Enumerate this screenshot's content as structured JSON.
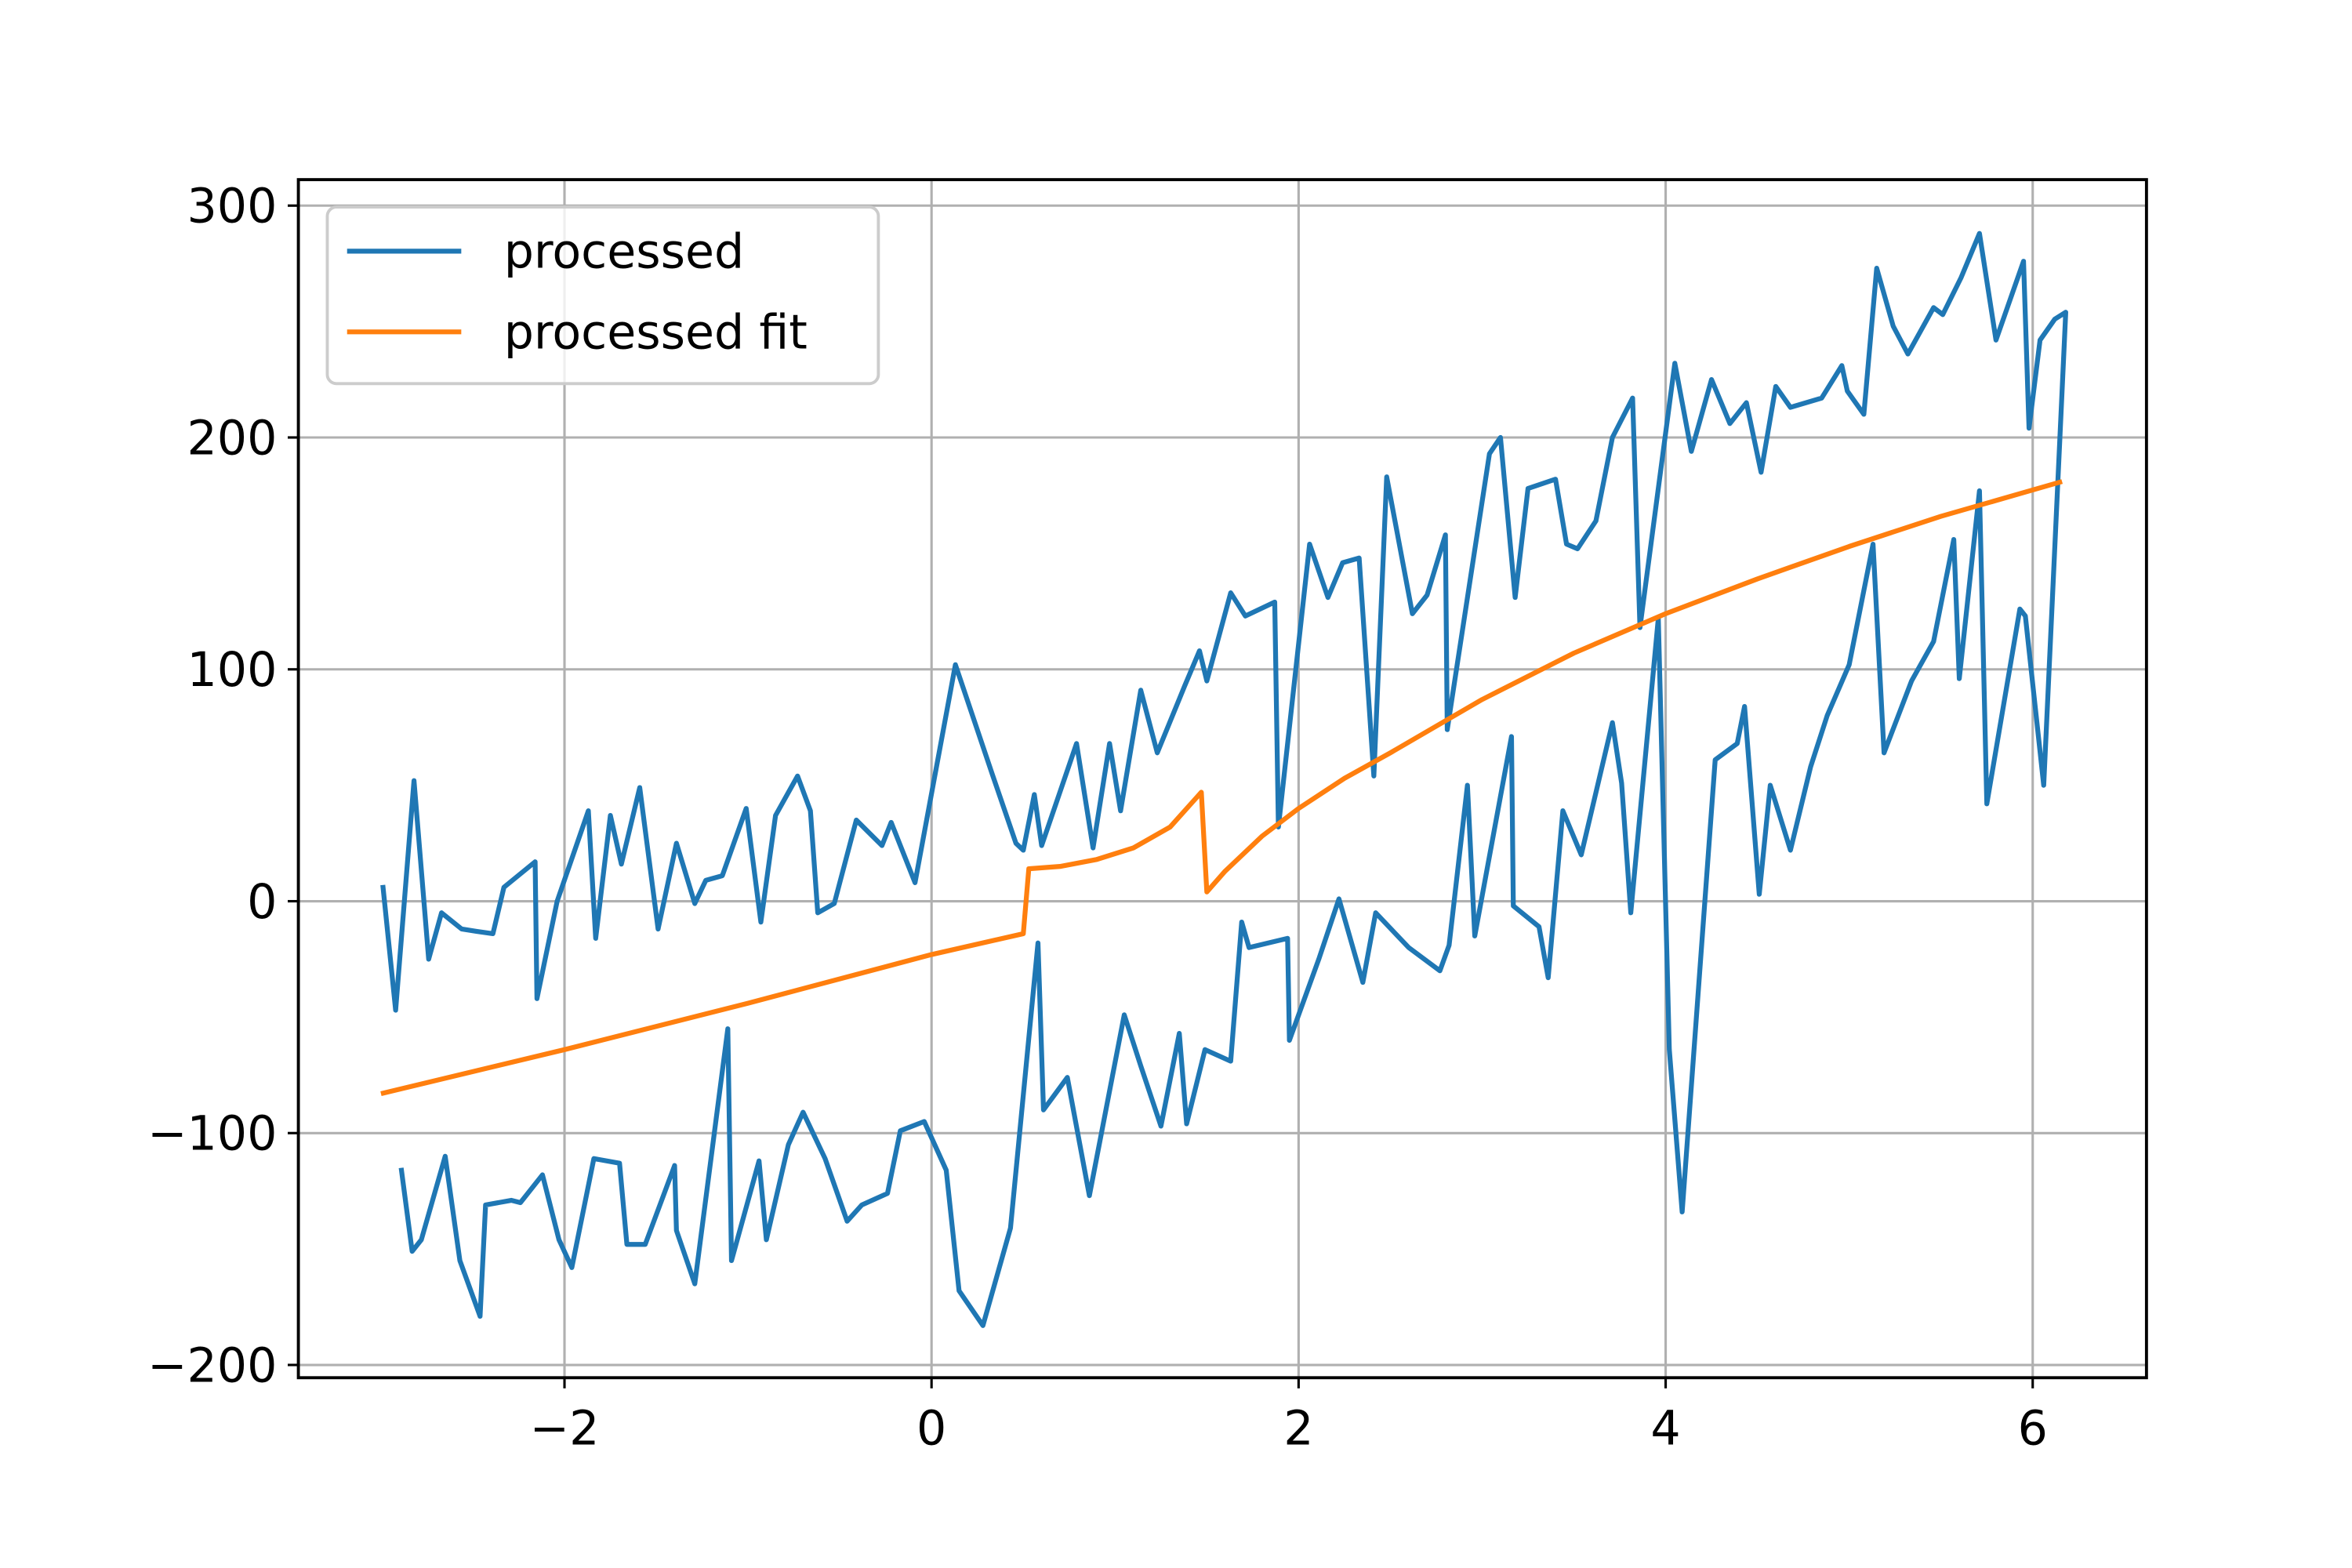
{
  "chart_data": {
    "type": "line",
    "xlim": [
      -3.45,
      6.62
    ],
    "ylim": [
      -205.5,
      311.2
    ],
    "xticks": [
      {
        "value": -2,
        "label": "−2"
      },
      0,
      2,
      4,
      6
    ],
    "yticks": [
      {
        "value": -200,
        "label": "−200"
      },
      {
        "value": -100,
        "label": "−100"
      },
      0,
      100,
      200,
      300
    ],
    "grid": true,
    "legend": "upper left",
    "series": [
      {
        "name": "processed",
        "color": "#1f77b4",
        "x": [
          -2.99,
          -2.92,
          -2.82,
          -2.74,
          -2.67,
          -2.56,
          -2.48,
          -2.39,
          -2.33,
          -2.16,
          -2.15,
          -2.04,
          -1.87,
          -1.83,
          -1.75,
          -1.69,
          -1.59,
          -1.49,
          -1.39,
          -1.29,
          -1.23,
          -1.14,
          -1.01,
          -0.93,
          -0.85,
          -0.73,
          -0.66,
          -0.62,
          -0.53,
          -0.41,
          -0.27,
          -0.22,
          -0.09,
          0.13,
          0.33,
          0.46,
          0.5,
          0.56,
          0.6,
          0.79,
          0.88,
          0.97,
          1.03,
          1.14,
          1.23,
          1.38,
          1.46,
          1.5,
          1.63,
          1.71,
          1.87,
          1.89,
          2.06,
          2.16,
          2.24,
          2.33,
          2.41,
          2.48,
          2.62,
          2.7,
          2.8,
          2.81,
          3.04,
          3.1,
          3.18,
          3.25,
          3.4,
          3.46,
          3.52,
          3.62,
          3.71,
          3.82,
          3.86,
          4.05,
          4.14,
          4.25,
          4.35,
          4.44,
          4.52,
          4.6,
          4.68,
          4.85,
          4.96,
          4.99,
          5.08,
          5.15,
          5.24,
          5.32,
          5.46,
          5.51,
          5.61,
          5.71,
          5.8,
          5.95,
          5.98,
          6.04,
          6.12,
          6.18,
          6.06,
          5.96,
          5.93,
          5.75,
          5.71,
          5.6,
          5.57,
          5.46,
          5.34,
          5.19,
          5.13,
          5.0,
          4.88,
          4.79,
          4.68,
          4.57,
          4.51,
          4.43,
          4.39,
          4.27,
          4.09,
          4.02,
          3.96,
          3.81,
          3.76,
          3.71,
          3.54,
          3.44,
          3.36,
          3.31,
          3.17,
          3.16,
          2.96,
          2.92,
          2.82,
          2.77,
          2.6,
          2.42,
          2.35,
          2.22,
          2.11,
          1.95,
          1.94,
          1.73,
          1.69,
          1.63,
          1.49,
          1.39,
          1.35,
          1.25,
          1.14,
          1.05,
          0.86,
          0.74,
          0.61,
          0.58,
          0.43,
          0.28,
          0.15,
          0.08,
          -0.04,
          -0.17,
          -0.24,
          -0.38,
          -0.46,
          -0.58,
          -0.7,
          -0.78,
          -0.9,
          -0.94,
          -1.09,
          -1.11,
          -1.29,
          -1.39,
          -1.4,
          -1.56,
          -1.66,
          -1.7,
          -1.84,
          -1.96,
          -2.03,
          -2.12,
          -2.24,
          -2.29,
          -2.43,
          -2.46,
          -2.57,
          -2.65,
          -2.78,
          -2.83,
          -2.89
        ],
        "values": [
          7,
          -47,
          52,
          -25,
          -5,
          -12,
          -13,
          -14,
          6,
          17,
          -42,
          0,
          39,
          -16,
          37,
          16,
          49,
          -12,
          25,
          -1,
          9,
          11,
          40,
          -9,
          37,
          54,
          39,
          -5,
          -1,
          35,
          24,
          34,
          8,
          102,
          55,
          25,
          22,
          46,
          24,
          68,
          23,
          68,
          39,
          91,
          64,
          93,
          108,
          95,
          133,
          123,
          129,
          32,
          154,
          131,
          146,
          148,
          54,
          183,
          124,
          132,
          158,
          74,
          193,
          200,
          131,
          178,
          182,
          154,
          152,
          164,
          200,
          217,
          118,
          232,
          194,
          225,
          206,
          215,
          185,
          222,
          213,
          217,
          231,
          220,
          210,
          273,
          248,
          236,
          256,
          253,
          269,
          288,
          242,
          276,
          204,
          242,
          251,
          254,
          50,
          123,
          126,
          42,
          177,
          96,
          156,
          112,
          95,
          64,
          154,
          102,
          80,
          58,
          22,
          50,
          3,
          84,
          68,
          61,
          -134,
          -64,
          122,
          -5,
          51,
          77,
          20,
          39,
          -33,
          -11,
          -2,
          71,
          -15,
          50,
          -19,
          -30,
          -20,
          -5,
          -35,
          1,
          -25,
          -60,
          -16,
          -20,
          -9,
          -69,
          -64,
          -96,
          -57,
          -97,
          -71,
          -49,
          -127,
          -76,
          -90,
          -18,
          -141,
          -183,
          -168,
          -116,
          -95,
          -99,
          -126,
          -131,
          -138,
          -111,
          -91,
          -105,
          -146,
          -112,
          -155,
          -55,
          -165,
          -142,
          -114,
          -148,
          -148,
          -113,
          -111,
          -158,
          -146,
          -118,
          -130,
          -129,
          -131,
          -179,
          -155,
          -110,
          -146,
          -151,
          -115
        ]
      },
      {
        "name": "processed fit",
        "color": "#ff7f0e",
        "x": [
          -3,
          -2,
          -1,
          0,
          0.5,
          0.53,
          0.7,
          0.9,
          1.1,
          1.3,
          1.47,
          1.5,
          1.6,
          1.8,
          2.0,
          2.25,
          2.5,
          3.0,
          3.5,
          4.0,
          4.5,
          5.0,
          5.5,
          6.16
        ],
        "values": [
          -83,
          -64,
          -44,
          -23,
          -14,
          14,
          15,
          18,
          23,
          32,
          47,
          4,
          13,
          28,
          40,
          53,
          64,
          87,
          107,
          124,
          139,
          153,
          166,
          181
        ]
      }
    ]
  }
}
